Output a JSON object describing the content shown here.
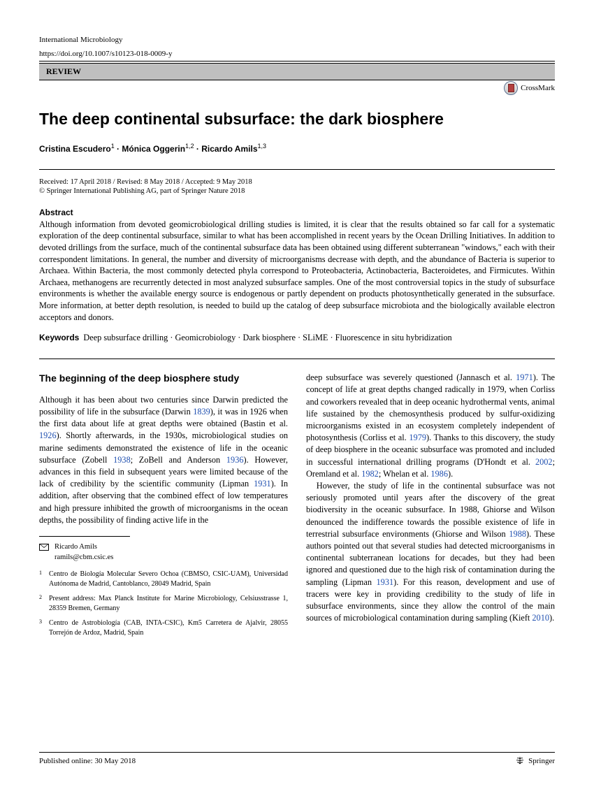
{
  "header": {
    "journal": "International Microbiology",
    "doi": "https://doi.org/10.1007/s10123-018-0009-y",
    "review_label": "REVIEW",
    "crossmark_label": "CrossMark"
  },
  "title": "The deep continental subsurface: the dark biosphere",
  "authors_html": "Cristina Escudero<sup>1</sup> · Mónica Oggerin<sup>1,2</sup> · Ricardo Amils<sup>1,3</sup>",
  "dates": "Received: 17 April 2018 / Revised: 8 May 2018 / Accepted: 9 May 2018",
  "copyright": "© Springer International Publishing AG, part of Springer Nature 2018",
  "abstract": {
    "heading": "Abstract",
    "text": "Although information from devoted geomicrobiological drilling studies is limited, it is clear that the results obtained so far call for a systematic exploration of the deep continental subsurface, similar to what has been accomplished in recent years by the Ocean Drilling Initiatives. In addition to devoted drillings from the surface, much of the continental subsurface data has been obtained using different subterranean \"windows,\" each with their correspondent limitations. In general, the number and diversity of microorganisms decrease with depth, and the abundance of Bacteria is superior to Archaea. Within Bacteria, the most commonly detected phyla correspond to Proteobacteria, Actinobacteria, Bacteroidetes, and Firmicutes. Within Archaea, methanogens are recurrently detected in most analyzed subsurface samples. One of the most controversial topics in the study of subsurface environments is whether the available energy source is endogenous or partly dependent on products photosynthetically generated in the subsurface. More information, at better depth resolution, is needed to build up the catalog of deep subsurface microbiota and the biologically available electron acceptors and donors."
  },
  "keywords": {
    "label": "Keywords",
    "text": "Deep subsurface drilling · Geomicrobiology · Dark biosphere · SLiME · Fluorescence in situ hybridization"
  },
  "section_heading": "The beginning of the deep biosphere study",
  "col1_p1": "Although it has been about two centuries since Darwin predicted the possibility of life in the subsurface (Darwin <span class=\"citelink\">1839</span>), it was in 1926 when the first data about life at great depths were obtained (Bastin et al. <span class=\"citelink\">1926</span>). Shortly afterwards, in the 1930s, microbiological studies on marine sediments demonstrated the existence of life in the oceanic subsurface (Zobell <span class=\"citelink\">1938</span>; ZoBell and Anderson <span class=\"citelink\">1936</span>). However, advances in this field in subsequent years were limited because of the lack of credibility by the scientific community (Lipman <span class=\"citelink\">1931</span>). In addition, after observing that the combined effect of low temperatures and high pressure inhibited the growth of microorganisms in the ocean depths, the possibility of finding active life in the",
  "col2_p1": "deep subsurface was severely questioned (Jannasch et al. <span class=\"citelink\">1971</span>). The concept of life at great depths changed radically in 1979, when Corliss and coworkers revealed that in deep oceanic hydrothermal vents, animal life sustained by the chemosynthesis produced by sulfur-oxidizing microorganisms existed in an ecosystem completely independent of photosynthesis (Corliss et al. <span class=\"citelink\">1979</span>). Thanks to this discovery, the study of deep biosphere in the oceanic subsurface was promoted and included in successful international drilling programs (D'Hondt et al. <span class=\"citelink\">2002</span>; Oremland et al. <span class=\"citelink\">1982</span>; Whelan et al. <span class=\"citelink\">1986</span>).",
  "col2_p2": "However, the study of life in the continental subsurface was not seriously promoted until years after the discovery of the great biodiversity in the oceanic subsurface. In 1988, Ghiorse and Wilson denounced the indifference towards the possible existence of life in terrestrial subsurface environments (Ghiorse and Wilson <span class=\"citelink\">1988</span>). These authors pointed out that several studies had detected microorganisms in continental subterranean locations for decades, but they had been ignored and questioned due to the high risk of contamination during the sampling (Lipman <span class=\"citelink\">1931</span>). For this reason, development and use of tracers were key in providing credibility to the study of life in subsurface environments, since they allow the control of the main sources of microbiological contamination during sampling (Kieft <span class=\"citelink\">2010</span>).",
  "corresponding": {
    "name": "Ricardo Amils",
    "email": "ramils@cbm.csic.es"
  },
  "affiliations": [
    {
      "num": "1",
      "text": "Centro de Biología Molecular Severo Ochoa (CBMSO, CSIC-UAM), Universidad Autónoma de Madrid, Cantoblanco, 28049 Madrid, Spain"
    },
    {
      "num": "2",
      "text": "Present address: Max Planck Institute for Marine Microbiology, Celsiusstrasse 1, 28359 Bremen, Germany"
    },
    {
      "num": "3",
      "text": "Centro de Astrobiología (CAB, INTA-CSIC), Km5 Carretera de Ajalvir, 28055 Torrejón de Ardoz, Madrid, Spain"
    }
  ],
  "footer": {
    "published": "Published online: 30 May 2018",
    "publisher": "Springer"
  }
}
